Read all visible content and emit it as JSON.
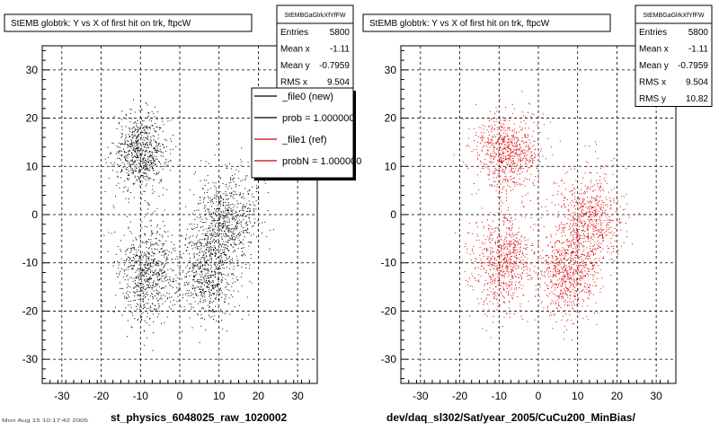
{
  "panels": [
    {
      "title": "StEMB globtrk: Y vs X of first hit on trk, ftpcW",
      "stats": {
        "name": "StEMBGaGlrkXfYfFW",
        "rows": [
          {
            "label": "Entries",
            "value": "5800"
          },
          {
            "label": "Mean x",
            "value": "-1.11"
          },
          {
            "label": "Mean y",
            "value": "-0.7959"
          },
          {
            "label": "RMS x",
            "value": "9.504"
          }
        ]
      },
      "legend": [
        {
          "label": "_file0 (new)",
          "color": "#000000"
        },
        {
          "label": "prob = 1.000000",
          "color": "#000000"
        },
        {
          "label": "_file1 (ref)",
          "color": "#cc0000"
        },
        {
          "label": "probN = 1.000000",
          "color": "#cc0000"
        }
      ],
      "xlabel": "st_physics_6048025_raw_1020002",
      "marker_color": "#000000"
    },
    {
      "title": "StEMB globtrk: Y vs X of first hit on trk, ftpcW",
      "stats": {
        "name": "StEMBGaGlrkXfYfFW",
        "rows": [
          {
            "label": "Entries",
            "value": "5800"
          },
          {
            "label": "Mean x",
            "value": "-1.11"
          },
          {
            "label": "Mean y",
            "value": "-0.7959"
          },
          {
            "label": "RMS x",
            "value": "9.504"
          },
          {
            "label": "RMS y",
            "value": "10.82"
          }
        ]
      },
      "xlabel": "dev/daq_sl302/Sat/year_2005/CuCu200_MinBias/",
      "marker_color": "#dd0000"
    }
  ],
  "footer": "Mon Aug 15 10:17:42 2005",
  "chart_data": [
    {
      "type": "scatter",
      "title": "StEMB globtrk: Y vs X of first hit on trk, ftpcW",
      "xlabel": "st_physics_6048025_raw_1020002",
      "ylabel": "",
      "xlim": [
        -35,
        35
      ],
      "ylim": [
        -35,
        35
      ],
      "xticks": [
        -30,
        -20,
        -10,
        0,
        10,
        20,
        30
      ],
      "yticks": [
        -30,
        -20,
        -10,
        0,
        10,
        20,
        30
      ],
      "grid": true,
      "entries": 5800,
      "mean_x": -1.11,
      "mean_y": -0.7959,
      "rms_x": 9.504,
      "rms_y": 10.82,
      "series": [
        {
          "name": "_file0 (new)",
          "clusters": [
            {
              "cx": -10,
              "cy": 13,
              "sx": 3.5,
              "sy": 4.0,
              "weight": 0.26
            },
            {
              "cx": -8,
              "cy": -12,
              "sx": 3.8,
              "sy": 5.0,
              "weight": 0.26
            },
            {
              "cx": 7,
              "cy": -12,
              "sx": 3.5,
              "sy": 4.5,
              "weight": 0.23
            },
            {
              "cx": 12,
              "cy": -1,
              "sx": 4.0,
              "sy": 5.0,
              "weight": 0.25
            }
          ]
        }
      ]
    },
    {
      "type": "scatter",
      "title": "StEMB globtrk: Y vs X of first hit on trk, ftpcW",
      "xlabel": "dev/daq_sl302/Sat/year_2005/CuCu200_MinBias/",
      "ylabel": "",
      "xlim": [
        -35,
        35
      ],
      "ylim": [
        -35,
        35
      ],
      "xticks": [
        -30,
        -20,
        -10,
        0,
        10,
        20,
        30
      ],
      "yticks": [
        -30,
        -20,
        -10,
        0,
        10,
        20,
        30
      ],
      "grid": true,
      "entries": 5800,
      "mean_x": -1.11,
      "mean_y": -0.7959,
      "rms_x": 9.504,
      "rms_y": 10.82,
      "series": [
        {
          "name": "_file1 (ref)",
          "clusters": [
            {
              "cx": -8,
              "cy": 13,
              "sx": 4.0,
              "sy": 4.0,
              "weight": 0.26
            },
            {
              "cx": -9,
              "cy": -10,
              "sx": 4.0,
              "sy": 5.0,
              "weight": 0.26
            },
            {
              "cx": 7,
              "cy": -12,
              "sx": 3.5,
              "sy": 4.5,
              "weight": 0.23
            },
            {
              "cx": 13,
              "cy": -1,
              "sx": 4.0,
              "sy": 5.0,
              "weight": 0.25
            }
          ]
        }
      ]
    }
  ]
}
